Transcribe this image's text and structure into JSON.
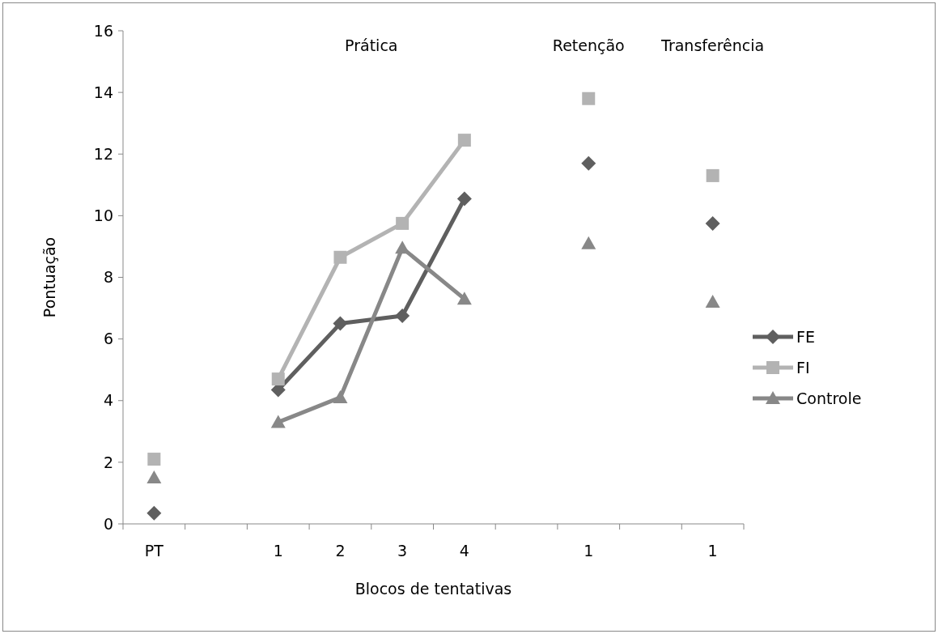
{
  "chart_data": {
    "type": "line",
    "xlabel": "Blocos de tentativas",
    "ylabel": "Pontuação",
    "categories": [
      "PT",
      null,
      "1",
      "2",
      "3",
      "4",
      null,
      "1",
      null,
      "1"
    ],
    "series": [
      {
        "name": "FE",
        "color": "#5f5f5f",
        "marker": "diamond",
        "values": [
          0.35,
          null,
          4.35,
          6.5,
          6.75,
          10.55,
          null,
          11.7,
          null,
          9.75
        ]
      },
      {
        "name": "FI",
        "color": "#b3b3b3",
        "marker": "square",
        "values": [
          2.1,
          null,
          4.7,
          8.65,
          9.75,
          12.45,
          null,
          13.8,
          null,
          11.3
        ]
      },
      {
        "name": "Controle",
        "color": "#888888",
        "marker": "triangle",
        "values": [
          1.5,
          null,
          3.3,
          4.1,
          8.95,
          7.3,
          null,
          9.1,
          null,
          7.2
        ]
      }
    ],
    "ylim": [
      0,
      16
    ],
    "yticks": [
      0,
      2,
      4,
      6,
      8,
      10,
      12,
      14,
      16
    ],
    "legend": "right",
    "grid": false,
    "annotations": [
      "Prática",
      "Retenção",
      "Transferência"
    ]
  }
}
